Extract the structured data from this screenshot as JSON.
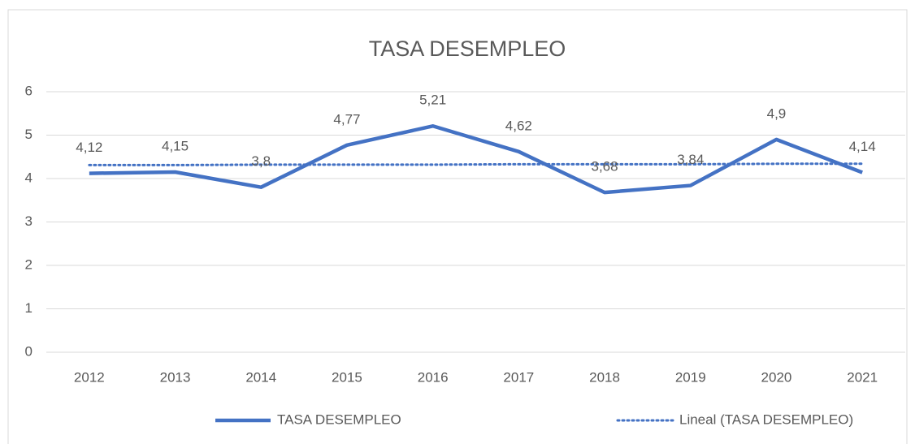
{
  "chart_data": {
    "type": "line",
    "title": "TASA DESEMPLEO",
    "categories": [
      "2012",
      "2013",
      "2014",
      "2015",
      "2016",
      "2017",
      "2018",
      "2019",
      "2020",
      "2021"
    ],
    "series": [
      {
        "name": "TASA DESEMPLEO",
        "color": "#4472c4",
        "style": "solid",
        "values": [
          4.12,
          4.15,
          3.8,
          4.77,
          5.21,
          4.62,
          3.68,
          3.84,
          4.9,
          4.14
        ],
        "value_labels": [
          "4,12",
          "4,15",
          "3,8",
          "4,77",
          "5,21",
          "4,62",
          "3,68",
          "3,84",
          "4,9",
          "4,14"
        ]
      },
      {
        "name": "Lineal (TASA DESEMPLEO)",
        "color": "#4472c4",
        "style": "dotted",
        "values": [
          4.31,
          4.31,
          4.32,
          4.32,
          4.32,
          4.33,
          4.33,
          4.33,
          4.34,
          4.34
        ]
      }
    ],
    "ylim": [
      0,
      6
    ],
    "yticks": [
      0,
      1,
      2,
      3,
      4,
      5,
      6
    ],
    "grid": true,
    "legend": "bottom"
  }
}
